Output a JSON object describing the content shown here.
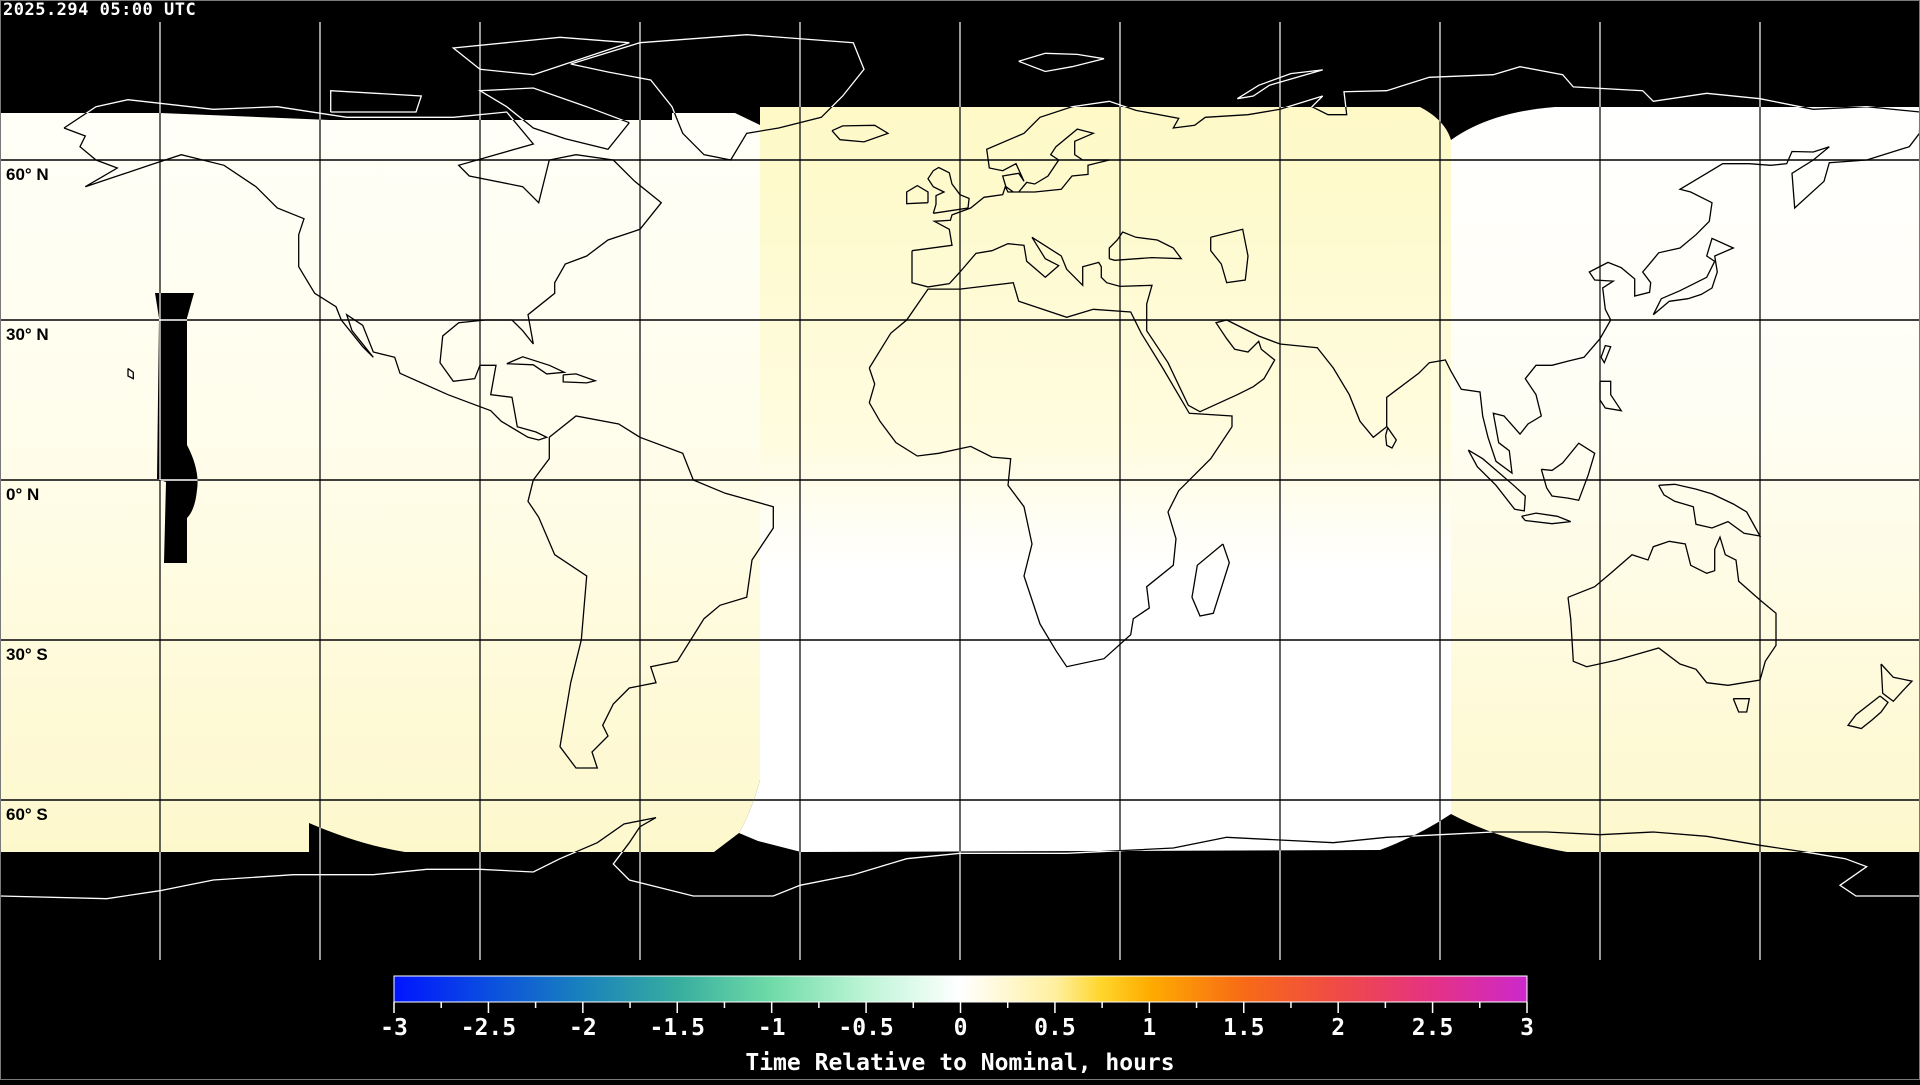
{
  "header": {
    "timestamp": "2025.294 05:00 UTC"
  },
  "map": {
    "projection": "equirectangular",
    "lat_labels": [
      "60° N",
      "30° N",
      "0° N",
      "30° S",
      "60° S"
    ],
    "grid_spacing_deg": 30,
    "no_data_color": "#000000",
    "coastline_color_on_data": "#000000",
    "coastline_color_on_nodata": "#ffffff"
  },
  "colorbar": {
    "title": "Time Relative to Nominal, hours",
    "range": [
      -3,
      3
    ],
    "tick_labels": [
      "-3",
      "-2.5",
      "-2",
      "-1.5",
      "-1",
      "-0.5",
      "0",
      "0.5",
      "1",
      "1.5",
      "2",
      "2.5",
      "3"
    ],
    "colors": {
      "-3": "#0014ff",
      "-2.5": "#0b4ee0",
      "-2": "#1a82bc",
      "-1.5": "#37ad9f",
      "-1": "#70dba8",
      "-0.5": "#bdf5d6",
      "0": "#ffffff",
      "0.5": "#fff0a0",
      "0.75": "#ffd52a",
      "1": "#ffac00",
      "1.5": "#f76a16",
      "2": "#f04a46",
      "2.5": "#e53284",
      "3": "#cc28cc"
    }
  }
}
